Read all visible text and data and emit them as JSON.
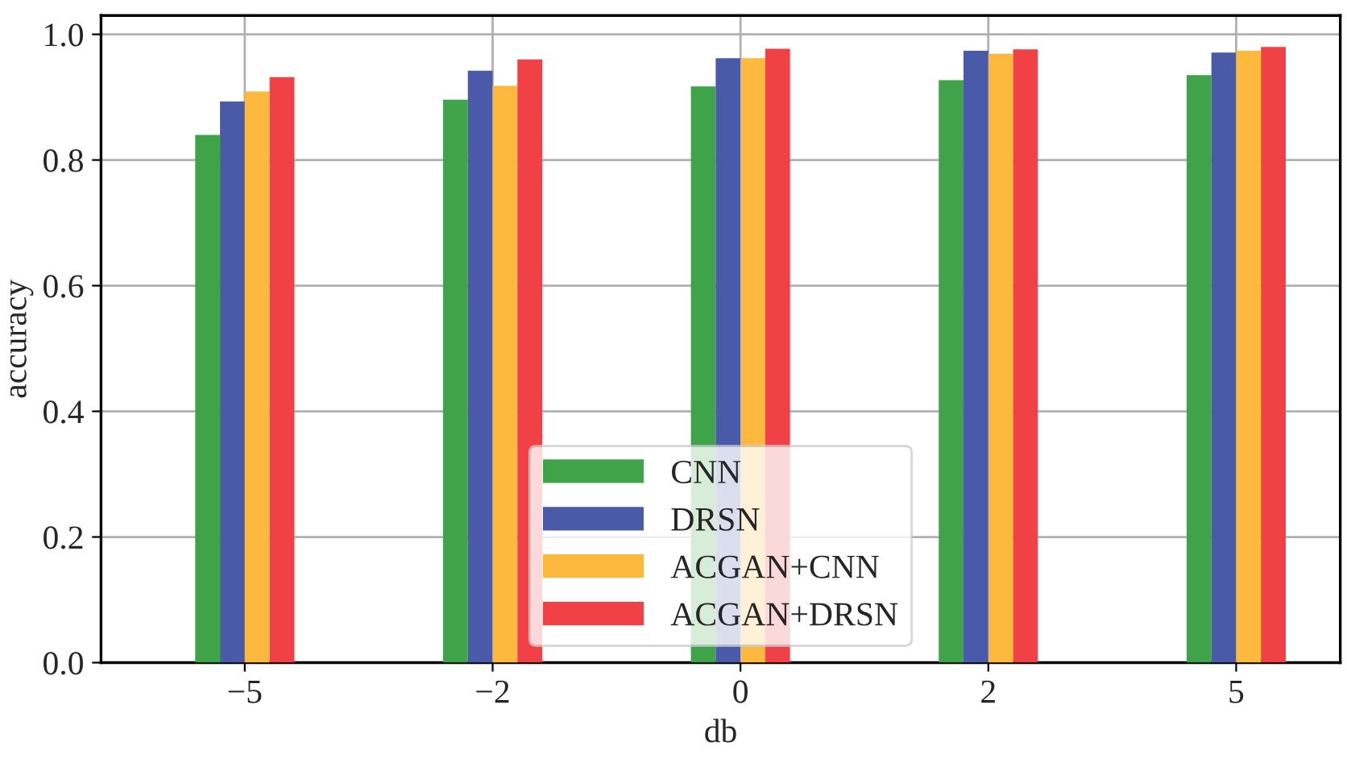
{
  "chart_data": {
    "type": "bar",
    "xlabel": "db",
    "ylabel": "accuracy",
    "categories": [
      "−5",
      "−2",
      "0",
      "2",
      "5"
    ],
    "series": [
      {
        "name": "CNN",
        "color": "#3fa34a",
        "values": [
          0.84,
          0.896,
          0.917,
          0.927,
          0.935
        ]
      },
      {
        "name": "DRSN",
        "color": "#4a5aa8",
        "values": [
          0.893,
          0.942,
          0.962,
          0.974,
          0.971
        ]
      },
      {
        "name": "ACGAN+CNN",
        "color": "#fdb93d",
        "values": [
          0.909,
          0.918,
          0.962,
          0.969,
          0.974
        ]
      },
      {
        "name": "ACGAN+DRSN",
        "color": "#ef4146",
        "values": [
          0.932,
          0.96,
          0.977,
          0.976,
          0.98
        ]
      }
    ],
    "ylim": [
      0,
      1.03
    ],
    "yticks": [
      {
        "value": 0,
        "label": "0.0"
      },
      {
        "value": 0.2,
        "label": "0.2"
      },
      {
        "value": 0.4,
        "label": "0.4"
      },
      {
        "value": 0.6,
        "label": "0.6"
      },
      {
        "value": 0.8,
        "label": "0.8"
      },
      {
        "value": 1.0,
        "label": "1.0"
      }
    ],
    "grid": true,
    "legend": "bottom"
  }
}
